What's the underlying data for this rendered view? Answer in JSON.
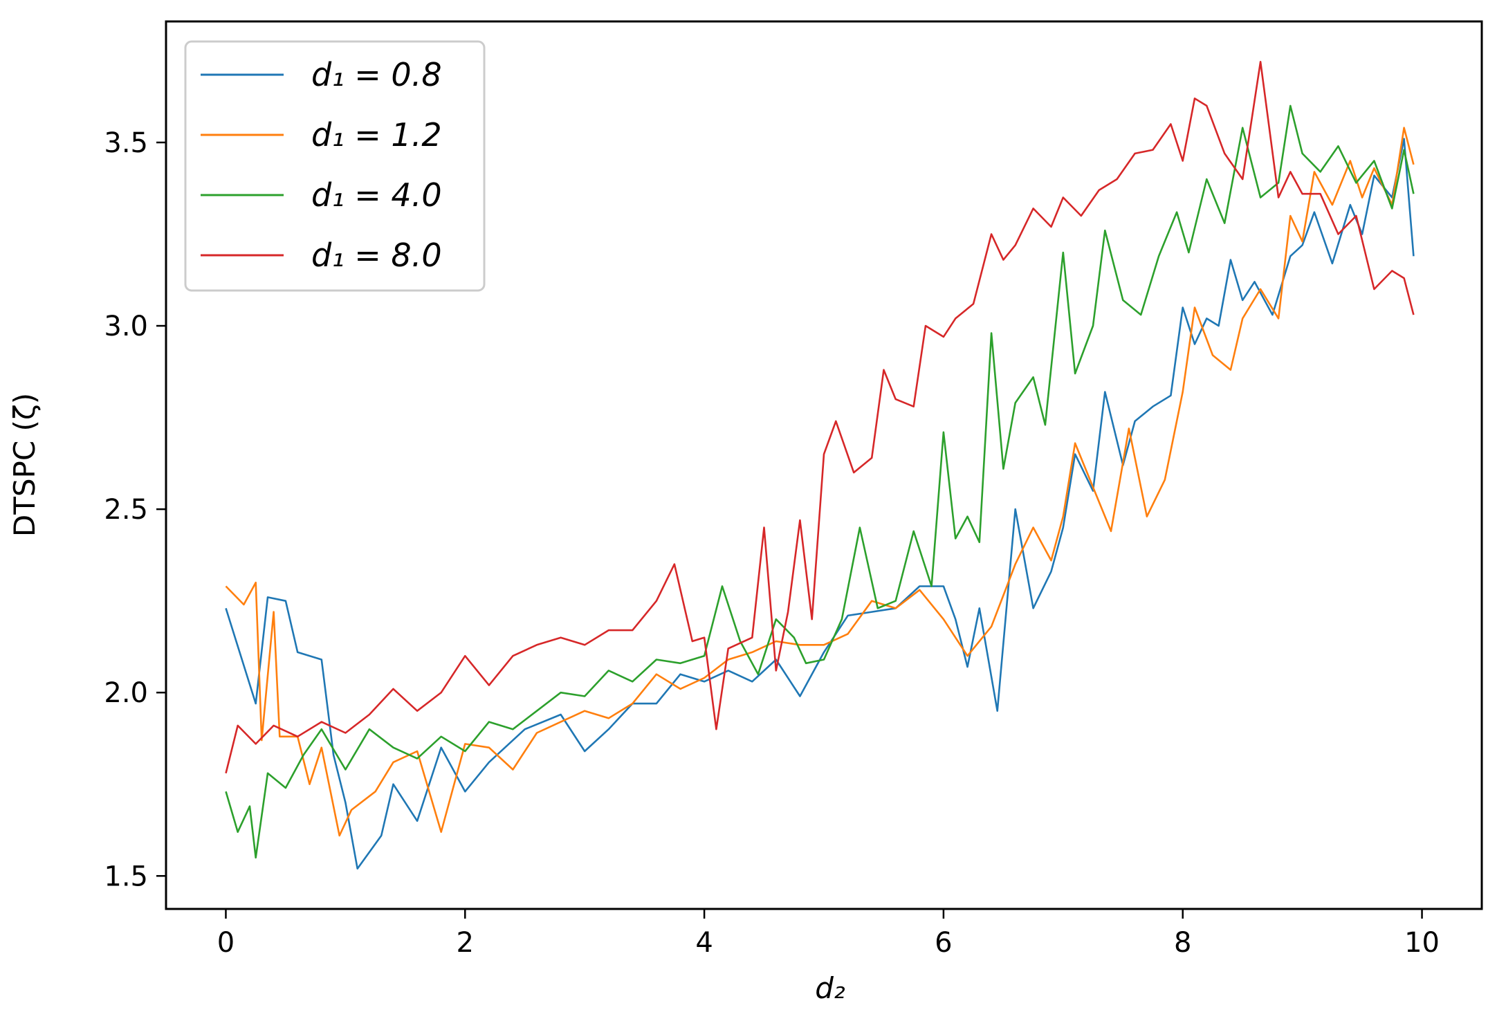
{
  "chart_data": {
    "type": "line",
    "xlabel": "d₂",
    "ylabel": "DTSPC (ζ)",
    "xlim": [
      -0.5,
      10.5
    ],
    "ylim": [
      1.41,
      3.83
    ],
    "xticks": [
      0,
      2,
      4,
      6,
      8,
      10
    ],
    "yticks": [
      1.5,
      2.0,
      2.5,
      3.0,
      3.5
    ],
    "xtick_labels": [
      "0",
      "2",
      "4",
      "6",
      "8",
      "10"
    ],
    "ytick_labels": [
      "1.5",
      "2.0",
      "2.5",
      "3.0",
      "3.5"
    ],
    "grid": false,
    "legend_position": "top-left",
    "series": [
      {
        "name": "d₁ = 0.8",
        "color": "#1f77b4",
        "points": [
          [
            0,
            2.23
          ],
          [
            0.25,
            1.97
          ],
          [
            0.35,
            2.26
          ],
          [
            0.5,
            2.25
          ],
          [
            0.6,
            2.11
          ],
          [
            0.8,
            2.09
          ],
          [
            0.9,
            1.83
          ],
          [
            1.0,
            1.7
          ],
          [
            1.1,
            1.52
          ],
          [
            1.3,
            1.61
          ],
          [
            1.4,
            1.75
          ],
          [
            1.6,
            1.65
          ],
          [
            1.8,
            1.85
          ],
          [
            2.0,
            1.73
          ],
          [
            2.2,
            1.81
          ],
          [
            2.5,
            1.9
          ],
          [
            2.8,
            1.94
          ],
          [
            3.0,
            1.84
          ],
          [
            3.2,
            1.9
          ],
          [
            3.4,
            1.97
          ],
          [
            3.6,
            1.97
          ],
          [
            3.8,
            2.05
          ],
          [
            4.0,
            2.03
          ],
          [
            4.2,
            2.06
          ],
          [
            4.4,
            2.03
          ],
          [
            4.6,
            2.09
          ],
          [
            4.8,
            1.99
          ],
          [
            5.0,
            2.11
          ],
          [
            5.2,
            2.21
          ],
          [
            5.4,
            2.22
          ],
          [
            5.6,
            2.23
          ],
          [
            5.8,
            2.29
          ],
          [
            6.0,
            2.29
          ],
          [
            6.1,
            2.2
          ],
          [
            6.2,
            2.07
          ],
          [
            6.3,
            2.23
          ],
          [
            6.45,
            1.95
          ],
          [
            6.6,
            2.5
          ],
          [
            6.75,
            2.23
          ],
          [
            6.9,
            2.33
          ],
          [
            7.0,
            2.45
          ],
          [
            7.1,
            2.65
          ],
          [
            7.25,
            2.55
          ],
          [
            7.35,
            2.82
          ],
          [
            7.5,
            2.62
          ],
          [
            7.6,
            2.74
          ],
          [
            7.75,
            2.78
          ],
          [
            7.9,
            2.81
          ],
          [
            8.0,
            3.05
          ],
          [
            8.1,
            2.95
          ],
          [
            8.2,
            3.02
          ],
          [
            8.3,
            3.0
          ],
          [
            8.4,
            3.18
          ],
          [
            8.5,
            3.07
          ],
          [
            8.6,
            3.12
          ],
          [
            8.75,
            3.03
          ],
          [
            8.9,
            3.19
          ],
          [
            9.0,
            3.22
          ],
          [
            9.1,
            3.31
          ],
          [
            9.25,
            3.17
          ],
          [
            9.4,
            3.33
          ],
          [
            9.5,
            3.25
          ],
          [
            9.6,
            3.41
          ],
          [
            9.75,
            3.35
          ],
          [
            9.85,
            3.51
          ],
          [
            9.93,
            3.19
          ]
        ]
      },
      {
        "name": "d₁ = 1.2",
        "color": "#ff7f0e",
        "points": [
          [
            0,
            2.29
          ],
          [
            0.15,
            2.24
          ],
          [
            0.25,
            2.3
          ],
          [
            0.3,
            1.87
          ],
          [
            0.4,
            2.22
          ],
          [
            0.45,
            1.88
          ],
          [
            0.6,
            1.88
          ],
          [
            0.7,
            1.75
          ],
          [
            0.8,
            1.85
          ],
          [
            0.95,
            1.61
          ],
          [
            1.05,
            1.68
          ],
          [
            1.25,
            1.73
          ],
          [
            1.4,
            1.81
          ],
          [
            1.6,
            1.84
          ],
          [
            1.8,
            1.62
          ],
          [
            2.0,
            1.86
          ],
          [
            2.2,
            1.85
          ],
          [
            2.4,
            1.79
          ],
          [
            2.6,
            1.89
          ],
          [
            2.8,
            1.92
          ],
          [
            3.0,
            1.95
          ],
          [
            3.2,
            1.93
          ],
          [
            3.4,
            1.97
          ],
          [
            3.6,
            2.05
          ],
          [
            3.8,
            2.01
          ],
          [
            4.0,
            2.04
          ],
          [
            4.2,
            2.09
          ],
          [
            4.4,
            2.11
          ],
          [
            4.6,
            2.14
          ],
          [
            4.8,
            2.13
          ],
          [
            5.0,
            2.13
          ],
          [
            5.2,
            2.16
          ],
          [
            5.4,
            2.25
          ],
          [
            5.6,
            2.23
          ],
          [
            5.8,
            2.28
          ],
          [
            6.0,
            2.2
          ],
          [
            6.2,
            2.1
          ],
          [
            6.4,
            2.18
          ],
          [
            6.6,
            2.35
          ],
          [
            6.75,
            2.45
          ],
          [
            6.9,
            2.36
          ],
          [
            7.0,
            2.48
          ],
          [
            7.1,
            2.68
          ],
          [
            7.25,
            2.56
          ],
          [
            7.4,
            2.44
          ],
          [
            7.55,
            2.72
          ],
          [
            7.7,
            2.48
          ],
          [
            7.85,
            2.58
          ],
          [
            8.0,
            2.82
          ],
          [
            8.1,
            3.05
          ],
          [
            8.25,
            2.92
          ],
          [
            8.4,
            2.88
          ],
          [
            8.5,
            3.02
          ],
          [
            8.65,
            3.1
          ],
          [
            8.8,
            3.02
          ],
          [
            8.9,
            3.3
          ],
          [
            9.0,
            3.23
          ],
          [
            9.1,
            3.42
          ],
          [
            9.25,
            3.33
          ],
          [
            9.4,
            3.45
          ],
          [
            9.5,
            3.35
          ],
          [
            9.6,
            3.43
          ],
          [
            9.75,
            3.33
          ],
          [
            9.85,
            3.54
          ],
          [
            9.93,
            3.44
          ]
        ]
      },
      {
        "name": "d₁ = 4.0",
        "color": "#2ca02c",
        "points": [
          [
            0,
            1.73
          ],
          [
            0.1,
            1.62
          ],
          [
            0.2,
            1.69
          ],
          [
            0.25,
            1.55
          ],
          [
            0.35,
            1.78
          ],
          [
            0.5,
            1.74
          ],
          [
            0.65,
            1.83
          ],
          [
            0.8,
            1.9
          ],
          [
            1.0,
            1.79
          ],
          [
            1.2,
            1.9
          ],
          [
            1.4,
            1.85
          ],
          [
            1.6,
            1.82
          ],
          [
            1.8,
            1.88
          ],
          [
            2.0,
            1.84
          ],
          [
            2.2,
            1.92
          ],
          [
            2.4,
            1.9
          ],
          [
            2.6,
            1.95
          ],
          [
            2.8,
            2.0
          ],
          [
            3.0,
            1.99
          ],
          [
            3.2,
            2.06
          ],
          [
            3.4,
            2.03
          ],
          [
            3.6,
            2.09
          ],
          [
            3.8,
            2.08
          ],
          [
            4.0,
            2.1
          ],
          [
            4.15,
            2.29
          ],
          [
            4.3,
            2.14
          ],
          [
            4.45,
            2.05
          ],
          [
            4.6,
            2.2
          ],
          [
            4.75,
            2.15
          ],
          [
            4.85,
            2.08
          ],
          [
            5.0,
            2.09
          ],
          [
            5.15,
            2.2
          ],
          [
            5.3,
            2.45
          ],
          [
            5.45,
            2.23
          ],
          [
            5.6,
            2.25
          ],
          [
            5.75,
            2.44
          ],
          [
            5.9,
            2.29
          ],
          [
            6.0,
            2.71
          ],
          [
            6.1,
            2.42
          ],
          [
            6.2,
            2.48
          ],
          [
            6.3,
            2.41
          ],
          [
            6.4,
            2.98
          ],
          [
            6.5,
            2.61
          ],
          [
            6.6,
            2.79
          ],
          [
            6.75,
            2.86
          ],
          [
            6.85,
            2.73
          ],
          [
            7.0,
            3.2
          ],
          [
            7.1,
            2.87
          ],
          [
            7.25,
            3.0
          ],
          [
            7.35,
            3.26
          ],
          [
            7.5,
            3.07
          ],
          [
            7.65,
            3.03
          ],
          [
            7.8,
            3.19
          ],
          [
            7.95,
            3.31
          ],
          [
            8.05,
            3.2
          ],
          [
            8.2,
            3.4
          ],
          [
            8.35,
            3.28
          ],
          [
            8.5,
            3.54
          ],
          [
            8.65,
            3.35
          ],
          [
            8.8,
            3.39
          ],
          [
            8.9,
            3.6
          ],
          [
            9.0,
            3.47
          ],
          [
            9.15,
            3.42
          ],
          [
            9.3,
            3.49
          ],
          [
            9.45,
            3.39
          ],
          [
            9.6,
            3.45
          ],
          [
            9.75,
            3.32
          ],
          [
            9.85,
            3.48
          ],
          [
            9.93,
            3.36
          ]
        ]
      },
      {
        "name": "d₁ = 8.0",
        "color": "#d62728",
        "points": [
          [
            0,
            1.78
          ],
          [
            0.1,
            1.91
          ],
          [
            0.25,
            1.86
          ],
          [
            0.4,
            1.91
          ],
          [
            0.6,
            1.88
          ],
          [
            0.8,
            1.92
          ],
          [
            1.0,
            1.89
          ],
          [
            1.2,
            1.94
          ],
          [
            1.4,
            2.01
          ],
          [
            1.6,
            1.95
          ],
          [
            1.8,
            2.0
          ],
          [
            2.0,
            2.1
          ],
          [
            2.2,
            2.02
          ],
          [
            2.4,
            2.1
          ],
          [
            2.6,
            2.13
          ],
          [
            2.8,
            2.15
          ],
          [
            3.0,
            2.13
          ],
          [
            3.2,
            2.17
          ],
          [
            3.4,
            2.17
          ],
          [
            3.6,
            2.25
          ],
          [
            3.75,
            2.35
          ],
          [
            3.9,
            2.14
          ],
          [
            4.0,
            2.15
          ],
          [
            4.1,
            1.9
          ],
          [
            4.2,
            2.12
          ],
          [
            4.4,
            2.15
          ],
          [
            4.5,
            2.45
          ],
          [
            4.6,
            2.06
          ],
          [
            4.7,
            2.22
          ],
          [
            4.8,
            2.47
          ],
          [
            4.9,
            2.2
          ],
          [
            5.0,
            2.65
          ],
          [
            5.1,
            2.74
          ],
          [
            5.25,
            2.6
          ],
          [
            5.4,
            2.64
          ],
          [
            5.5,
            2.88
          ],
          [
            5.6,
            2.8
          ],
          [
            5.75,
            2.78
          ],
          [
            5.85,
            3.0
          ],
          [
            6.0,
            2.97
          ],
          [
            6.1,
            3.02
          ],
          [
            6.25,
            3.06
          ],
          [
            6.4,
            3.25
          ],
          [
            6.5,
            3.18
          ],
          [
            6.6,
            3.22
          ],
          [
            6.75,
            3.32
          ],
          [
            6.9,
            3.27
          ],
          [
            7.0,
            3.35
          ],
          [
            7.15,
            3.3
          ],
          [
            7.3,
            3.37
          ],
          [
            7.45,
            3.4
          ],
          [
            7.6,
            3.47
          ],
          [
            7.75,
            3.48
          ],
          [
            7.9,
            3.55
          ],
          [
            8.0,
            3.45
          ],
          [
            8.1,
            3.62
          ],
          [
            8.2,
            3.6
          ],
          [
            8.35,
            3.47
          ],
          [
            8.5,
            3.4
          ],
          [
            8.65,
            3.72
          ],
          [
            8.8,
            3.35
          ],
          [
            8.9,
            3.42
          ],
          [
            9.0,
            3.36
          ],
          [
            9.15,
            3.36
          ],
          [
            9.3,
            3.25
          ],
          [
            9.45,
            3.3
          ],
          [
            9.6,
            3.1
          ],
          [
            9.75,
            3.15
          ],
          [
            9.85,
            3.13
          ],
          [
            9.93,
            3.03
          ]
        ]
      }
    ]
  }
}
